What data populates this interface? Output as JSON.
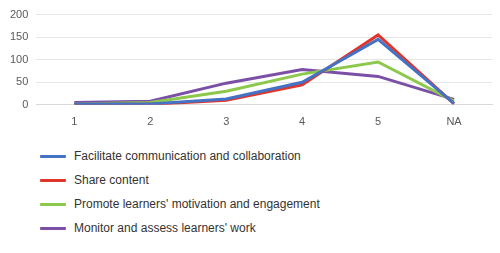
{
  "chart_data": {
    "type": "line",
    "categories": [
      "1",
      "2",
      "3",
      "4",
      "5",
      "NA"
    ],
    "series": [
      {
        "name": "Facilitate communication and collaboration",
        "color": "#4472c4",
        "values": [
          2,
          2,
          13,
          50,
          145,
          3
        ]
      },
      {
        "name": "Share content",
        "color": "#e0352b",
        "values": [
          1,
          1,
          10,
          44,
          155,
          2
        ]
      },
      {
        "name": "Promote learners' motivation and engagement",
        "color": "#8cc84b",
        "values": [
          2,
          5,
          30,
          68,
          95,
          8
        ]
      },
      {
        "name": "Monitor and assess learners' work",
        "color": "#7b4fa6",
        "values": [
          5,
          8,
          48,
          78,
          63,
          12
        ]
      }
    ],
    "ylim": [
      0,
      200
    ],
    "yticks": [
      0,
      50,
      100,
      150,
      200
    ],
    "grid": true,
    "legend": "bottom"
  }
}
